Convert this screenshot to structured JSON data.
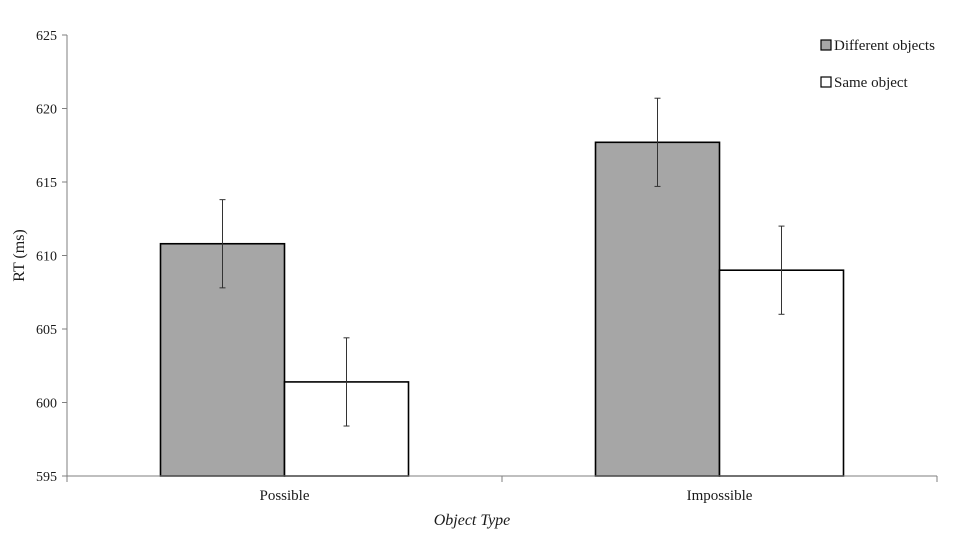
{
  "chart_data": {
    "type": "bar",
    "title": "",
    "xlabel": "Object Type",
    "ylabel": "RT (ms)",
    "categories": [
      "Possible",
      "Impossible"
    ],
    "ylim": [
      595,
      625
    ],
    "yticks": [
      "595",
      "600",
      "605",
      "610",
      "615",
      "620",
      "625"
    ],
    "grid": false,
    "legend_position": "top-right",
    "series": [
      {
        "name": "Different objects",
        "color": "#a6a6a6",
        "values": [
          610.8,
          617.7
        ],
        "errors": [
          3.0,
          3.0
        ]
      },
      {
        "name": "Same object",
        "color": "#ffffff",
        "values": [
          601.4,
          609.0
        ],
        "errors": [
          3.0,
          3.0
        ]
      }
    ]
  }
}
